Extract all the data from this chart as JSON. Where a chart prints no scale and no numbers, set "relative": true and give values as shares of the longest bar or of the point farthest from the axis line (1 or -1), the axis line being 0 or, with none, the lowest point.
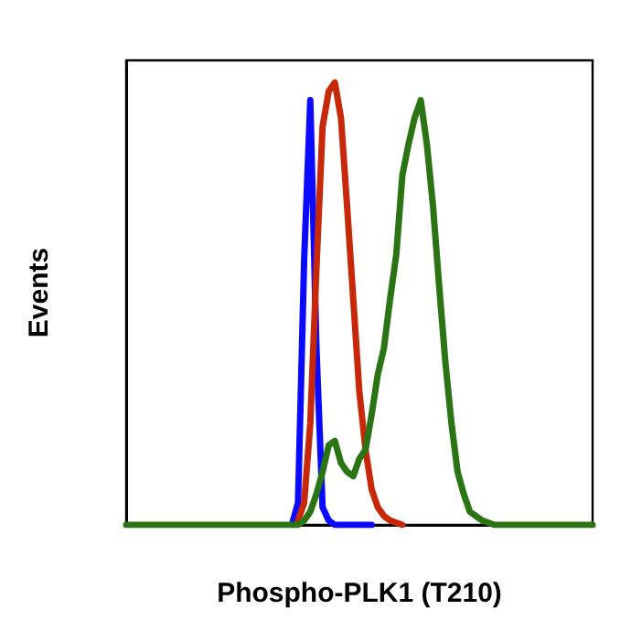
{
  "chart_data": {
    "type": "line",
    "xlabel": "Phospho-PLK1 (T210)",
    "ylabel": "Events",
    "relative": true,
    "grid": false,
    "marker": "none",
    "line_style": "solid",
    "categories": [
      null,
      null,
      null,
      null,
      null,
      null,
      null,
      null,
      null,
      null,
      null,
      null,
      null,
      null,
      null,
      null,
      null,
      null,
      null,
      null,
      null,
      null,
      null,
      null,
      null,
      null,
      null,
      null,
      null,
      null,
      null,
      null,
      null,
      null,
      null,
      null,
      null,
      null,
      null,
      null,
      null,
      null,
      null,
      null,
      null,
      null,
      null,
      null,
      null,
      null,
      null,
      null,
      null,
      null,
      null,
      null,
      null,
      null,
      null,
      null,
      null,
      null,
      null,
      null,
      null,
      null,
      null,
      null,
      null,
      null,
      null,
      null,
      null,
      null,
      null,
      null,
      null
    ],
    "series": [
      {
        "color": "#0a0aff",
        "values": [
          null,
          null,
          null,
          null,
          null,
          null,
          null,
          null,
          null,
          null,
          null,
          null,
          null,
          null,
          null,
          null,
          null,
          null,
          null,
          null,
          null,
          null,
          null,
          null,
          null,
          null,
          null,
          0,
          0.05,
          0.6,
          0.96,
          0.4,
          0.04,
          0.01,
          0,
          0,
          0,
          0,
          0,
          0,
          0,
          null,
          null,
          null,
          null,
          null,
          null,
          null,
          null,
          null,
          null,
          null,
          null,
          null,
          null,
          null,
          null,
          null,
          null,
          null,
          null,
          null,
          null,
          null,
          null,
          null,
          null,
          null,
          null,
          null,
          null,
          null,
          null,
          null,
          null,
          null,
          null
        ]
      },
      {
        "color": "#c8280a",
        "values": [
          null,
          null,
          null,
          null,
          null,
          null,
          null,
          null,
          null,
          null,
          null,
          null,
          null,
          null,
          null,
          null,
          null,
          null,
          null,
          null,
          null,
          null,
          null,
          null,
          null,
          null,
          null,
          null,
          0.01,
          0.05,
          0.23,
          0.58,
          0.9,
          0.98,
          1,
          0.92,
          0.72,
          0.51,
          0.3,
          0.17,
          0.08,
          0.04,
          0.02,
          0.01,
          0.005,
          0,
          null,
          null,
          null,
          null,
          null,
          null,
          null,
          null,
          null,
          null,
          null,
          null,
          null,
          null,
          null,
          null,
          null,
          null,
          null,
          null,
          null,
          null,
          null,
          null,
          null,
          null,
          null,
          null,
          null,
          null,
          null
        ]
      },
      {
        "color": "#2a7414",
        "values": [
          0,
          0,
          0,
          0,
          0,
          0,
          0,
          0,
          0,
          0,
          0,
          0,
          0,
          0,
          0,
          0,
          0,
          0,
          0,
          0,
          0,
          0,
          0,
          0,
          0,
          0,
          0,
          0,
          0,
          0.01,
          0.03,
          0.07,
          0.12,
          0.18,
          0.19,
          0.14,
          0.12,
          0.11,
          0.15,
          0.17,
          0.25,
          0.34,
          0.4,
          0.51,
          0.61,
          0.79,
          0.86,
          0.92,
          0.96,
          0.86,
          0.72,
          0.54,
          0.37,
          0.23,
          0.12,
          0.07,
          0.03,
          0.02,
          0.01,
          0.005,
          0,
          0,
          0,
          0,
          0,
          0,
          0,
          0,
          0,
          0,
          0,
          0,
          0,
          0,
          0,
          0,
          0
        ]
      }
    ]
  }
}
